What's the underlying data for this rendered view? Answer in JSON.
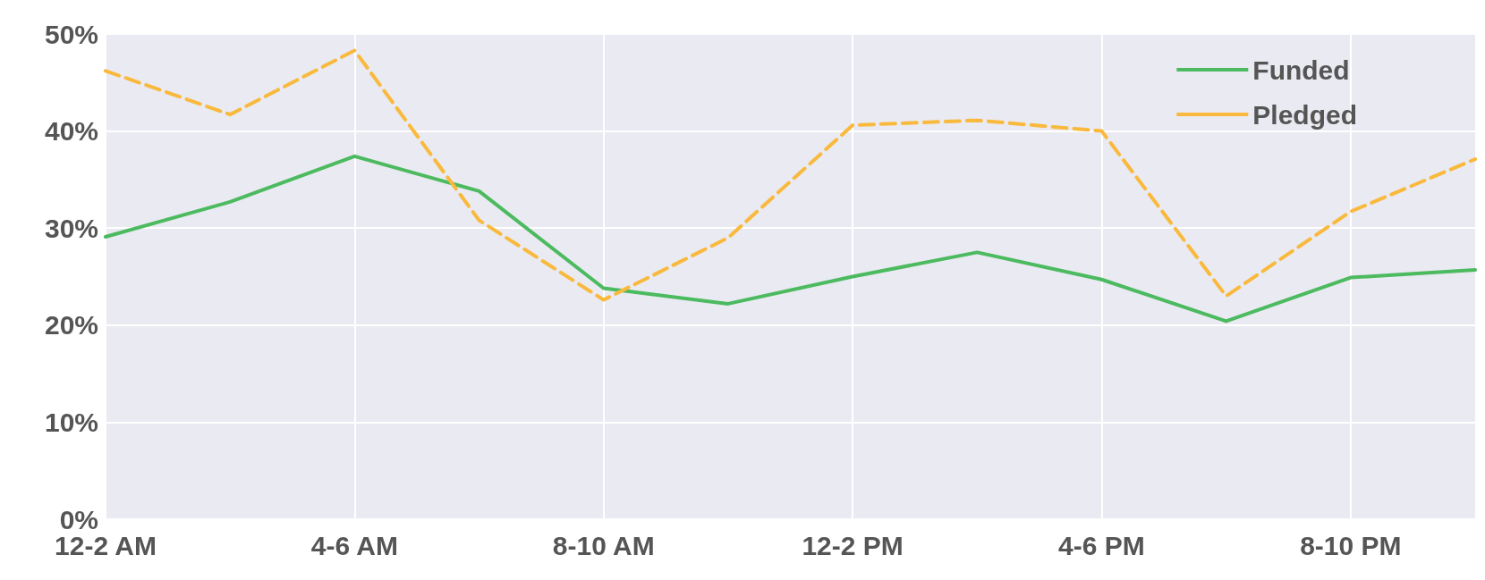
{
  "chart_data": {
    "type": "line",
    "categories": [
      "12-2 AM",
      null,
      "4-6 AM",
      null,
      "8-10 AM",
      null,
      "12-2 PM",
      null,
      "4-6 PM",
      null,
      "8-10 PM",
      null
    ],
    "series": [
      {
        "name": "Funded",
        "color": "#4cba5f",
        "line_style": "solid",
        "values": [
          29.1,
          32.7,
          37.4,
          33.8,
          23.8,
          22.2,
          25.0,
          27.5,
          24.7,
          20.4,
          24.9,
          25.7
        ]
      },
      {
        "name": "Pledged",
        "color": "#f9b93c",
        "line_style": "dashed",
        "values": [
          46.2,
          41.7,
          48.3,
          30.8,
          22.6,
          29.0,
          40.6,
          41.1,
          40.0,
          23.0,
          31.7,
          37.1
        ]
      }
    ],
    "ylim": [
      0,
      50
    ],
    "yticks": [
      {
        "value": 0,
        "label": "0%"
      },
      {
        "value": 10,
        "label": "10%"
      },
      {
        "value": 20,
        "label": "20%"
      },
      {
        "value": 30,
        "label": "30%"
      },
      {
        "value": 40,
        "label": "40%"
      },
      {
        "value": 50,
        "label": "50%"
      }
    ],
    "grid": true,
    "legend": "top right",
    "marker": "none"
  }
}
